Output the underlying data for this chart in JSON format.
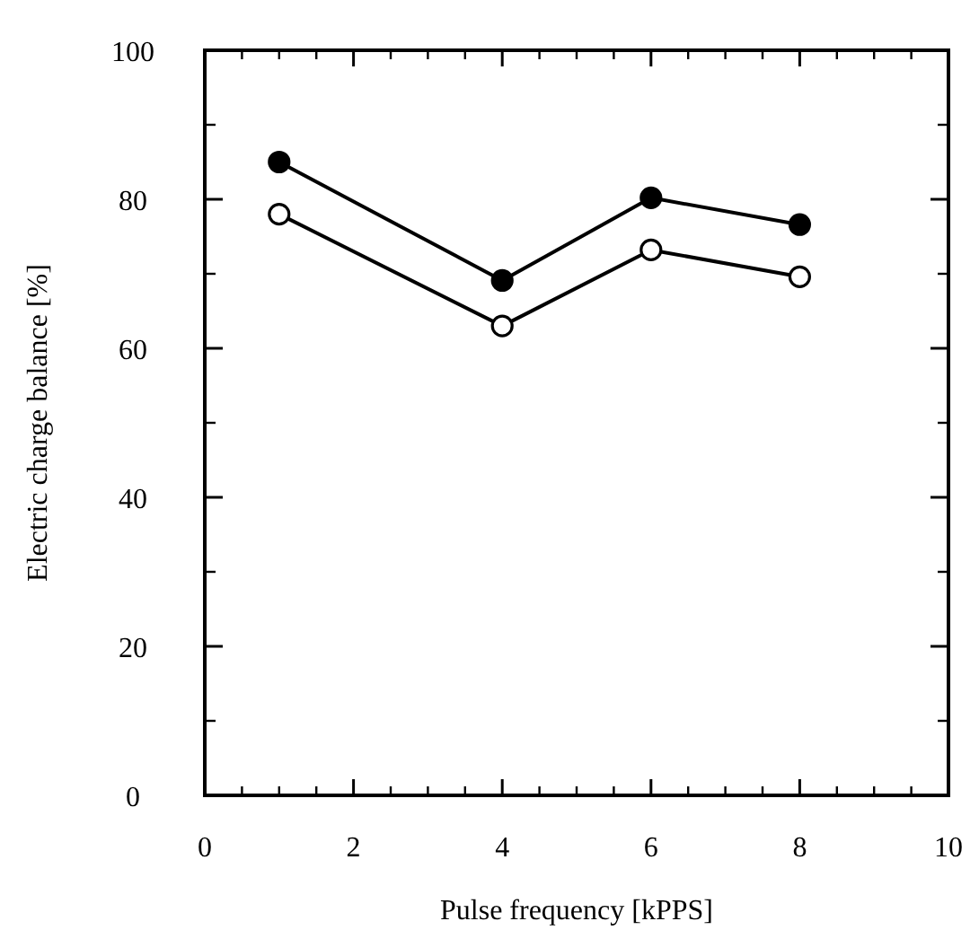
{
  "chart_data": {
    "type": "line",
    "xlabel": "Pulse frequency [kPPS]",
    "ylabel": "Electric charge balance [%]",
    "x": [
      1,
      4,
      6,
      8
    ],
    "series": [
      {
        "color": "#000000",
        "values": [
          85,
          69.1,
          80.2,
          76.6
        ]
      },
      {
        "color": "#000000",
        "values": [
          78,
          63,
          73.2,
          69.6
        ]
      }
    ],
    "xlim": [
      0,
      10
    ],
    "xticks": [
      0,
      2,
      4,
      6,
      8,
      10
    ],
    "ylim": [
      0,
      100
    ],
    "yticks": [
      0,
      20,
      40,
      60,
      80,
      100
    ],
    "grid": false,
    "marker": "circle",
    "line_style": "solid"
  }
}
